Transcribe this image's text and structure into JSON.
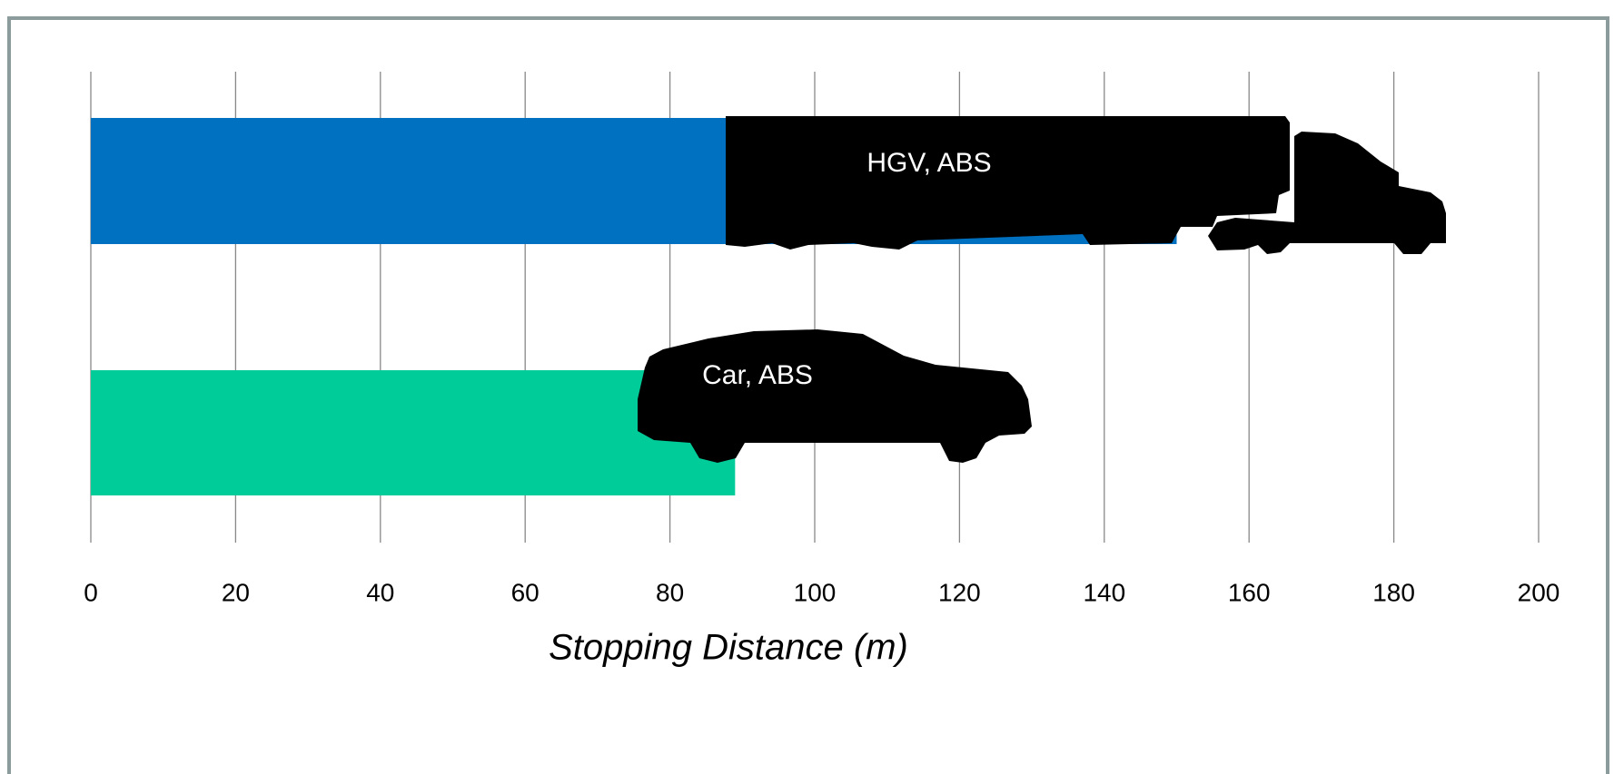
{
  "chart_data": {
    "type": "bar",
    "orientation": "horizontal",
    "categories": [
      "HGV, ABS",
      "Car, ABS"
    ],
    "values": [
      150,
      89
    ],
    "colors": [
      "#0070c0",
      "#00cc99"
    ],
    "xlabel": "Stopping Distance (m)",
    "xlim": [
      0,
      200
    ],
    "xticks": [
      0,
      20,
      40,
      60,
      80,
      100,
      120,
      140,
      160,
      180,
      200
    ],
    "grid": true
  }
}
